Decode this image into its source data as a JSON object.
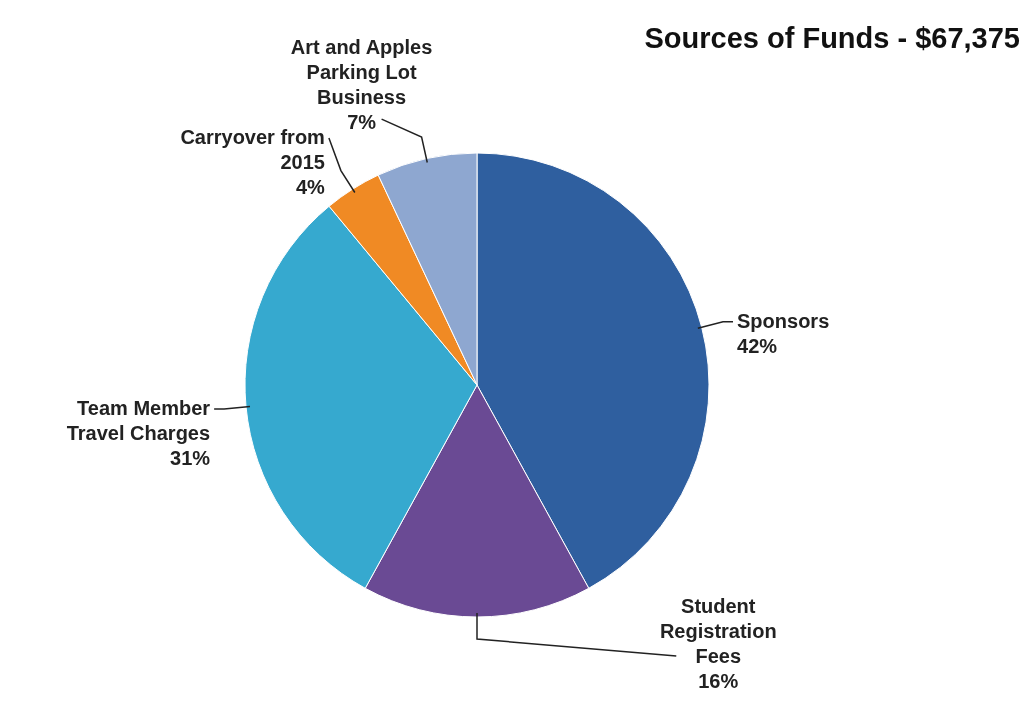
{
  "chart_data": {
    "type": "pie",
    "title": "Sources of Funds - $67,375",
    "categories": [
      "Sponsors",
      "Student Registration Fees",
      "Team Member Travel Charges",
      "Carryover from 2015",
      "Art and Apples Parking Lot Business"
    ],
    "values": [
      42,
      16,
      31,
      4,
      7
    ],
    "colors": [
      "#2f5f9f",
      "#6a4a94",
      "#36a9cf",
      "#f08a24",
      "#8ea7d0"
    ],
    "value_labels": [
      "42%",
      "16%",
      "31%",
      "4%",
      "7%"
    ]
  }
}
